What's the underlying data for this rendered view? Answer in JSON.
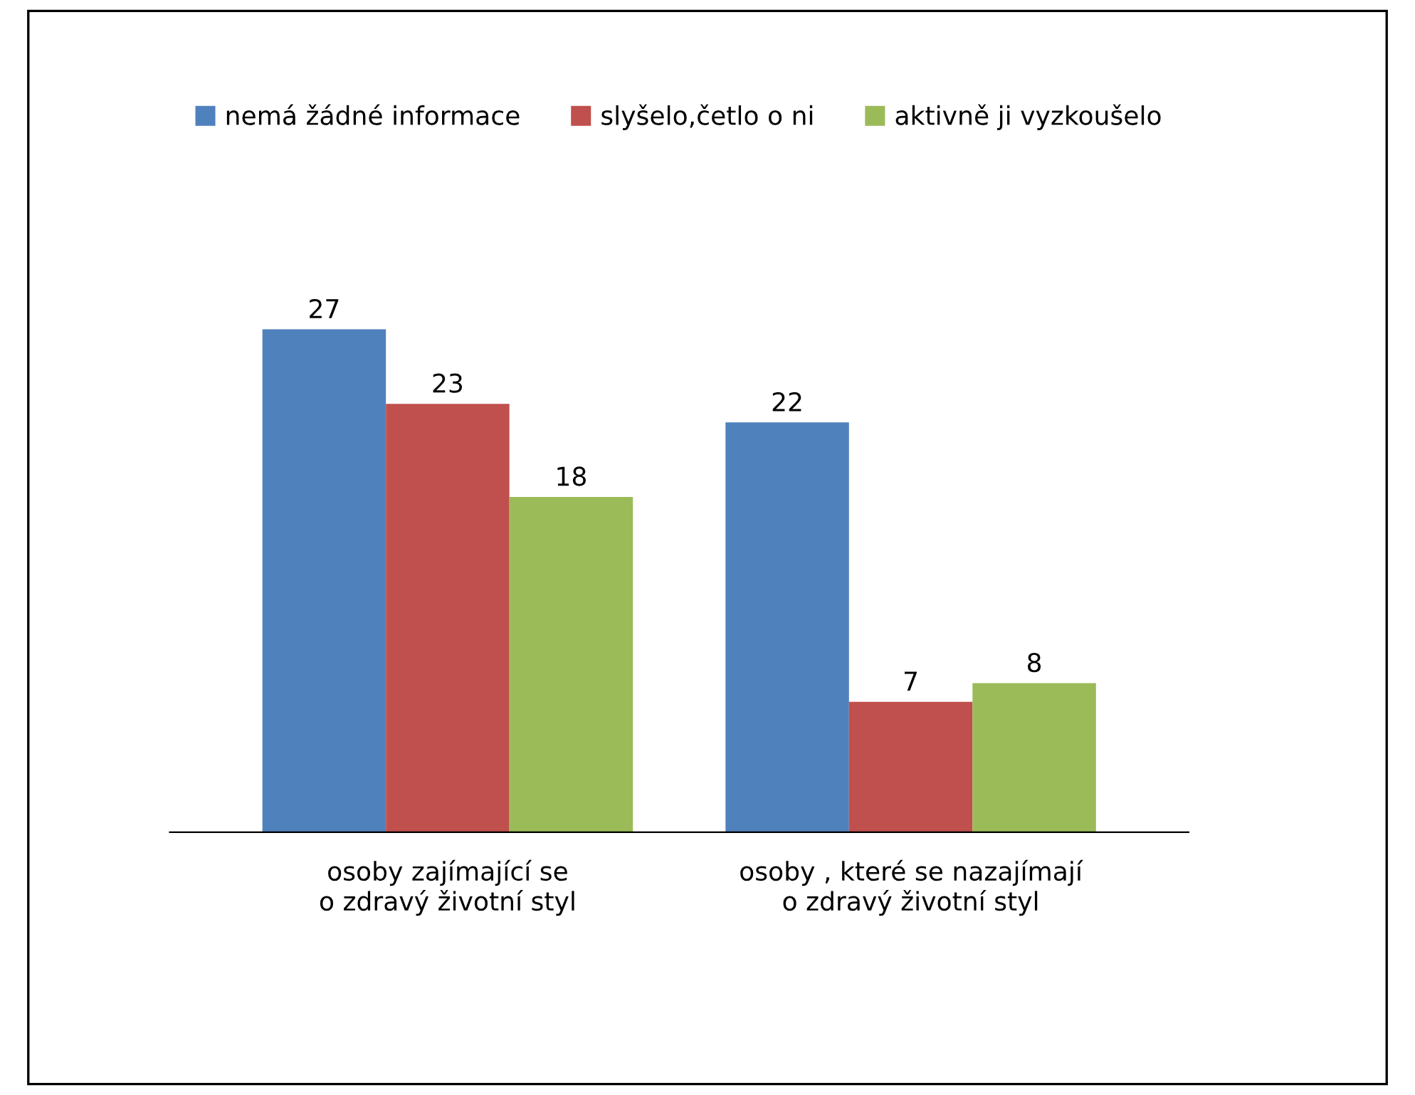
{
  "chart_data": {
    "type": "bar",
    "categories": [
      "osoby zajímající se o zdravý životní styl",
      "osoby , které se nazajímají o zdravý životní styl"
    ],
    "series": [
      {
        "name": "nemá žádné informace",
        "color": "#4f81bd",
        "values": [
          27,
          22
        ]
      },
      {
        "name": "slyšelo,četlo o ni",
        "color": "#c0504d",
        "values": [
          23,
          7
        ]
      },
      {
        "name": "aktivně ji vyzkoušelo",
        "color": "#9bbb59",
        "values": [
          18,
          8
        ]
      }
    ],
    "data_labels": true,
    "legend": "top",
    "grid": false
  }
}
